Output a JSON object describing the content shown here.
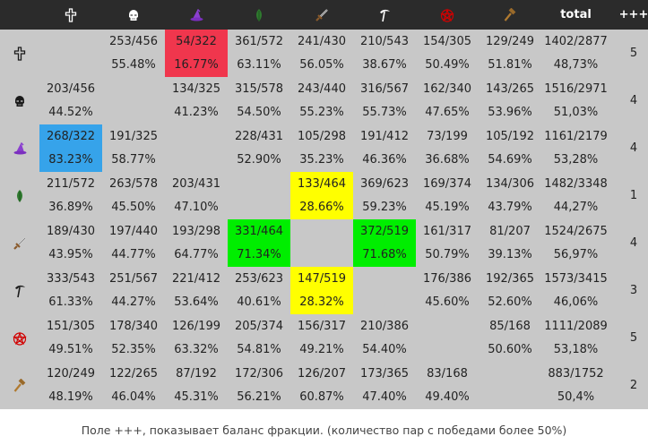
{
  "header": {
    "factions": [
      {
        "icon": "cross-icon"
      },
      {
        "icon": "skull-helmet-icon"
      },
      {
        "icon": "wizard-hat-icon"
      },
      {
        "icon": "leaf-icon"
      },
      {
        "icon": "sword-icon"
      },
      {
        "icon": "scythe-icon"
      },
      {
        "icon": "pentagram-icon"
      },
      {
        "icon": "hammer-icon"
      }
    ],
    "total_label": "total",
    "plus_label": "+++"
  },
  "rows": [
    {
      "icon": "cross-icon",
      "cells": [
        {
          "pair": "",
          "pct": ""
        },
        {
          "pair": "253/456",
          "pct": "55.48%"
        },
        {
          "pair": "54/322",
          "pct": "16.77%",
          "highlight": "red"
        },
        {
          "pair": "361/572",
          "pct": "63.11%"
        },
        {
          "pair": "241/430",
          "pct": "56.05%"
        },
        {
          "pair": "210/543",
          "pct": "38.67%"
        },
        {
          "pair": "154/305",
          "pct": "50.49%"
        },
        {
          "pair": "129/249",
          "pct": "51.81%"
        }
      ],
      "total": {
        "pair": "1402/2877",
        "pct": "48,73%"
      },
      "plus": "5"
    },
    {
      "icon": "skull-helmet-icon",
      "cells": [
        {
          "pair": "203/456",
          "pct": "44.52%"
        },
        {
          "pair": "",
          "pct": ""
        },
        {
          "pair": "134/325",
          "pct": "41.23%"
        },
        {
          "pair": "315/578",
          "pct": "54.50%"
        },
        {
          "pair": "243/440",
          "pct": "55.23%"
        },
        {
          "pair": "316/567",
          "pct": "55.73%"
        },
        {
          "pair": "162/340",
          "pct": "47.65%"
        },
        {
          "pair": "143/265",
          "pct": "53.96%"
        }
      ],
      "total": {
        "pair": "1516/2971",
        "pct": "51,03%"
      },
      "plus": "4"
    },
    {
      "icon": "wizard-hat-icon",
      "cells": [
        {
          "pair": "268/322",
          "pct": "83.23%",
          "highlight": "blue"
        },
        {
          "pair": "191/325",
          "pct": "58.77%"
        },
        {
          "pair": "",
          "pct": ""
        },
        {
          "pair": "228/431",
          "pct": "52.90%"
        },
        {
          "pair": "105/298",
          "pct": "35.23%"
        },
        {
          "pair": "191/412",
          "pct": "46.36%"
        },
        {
          "pair": "73/199",
          "pct": "36.68%"
        },
        {
          "pair": "105/192",
          "pct": "54.69%"
        }
      ],
      "total": {
        "pair": "1161/2179",
        "pct": "53,28%"
      },
      "plus": "4"
    },
    {
      "icon": "leaf-icon",
      "cells": [
        {
          "pair": "211/572",
          "pct": "36.89%"
        },
        {
          "pair": "263/578",
          "pct": "45.50%"
        },
        {
          "pair": "203/431",
          "pct": "47.10%"
        },
        {
          "pair": "",
          "pct": ""
        },
        {
          "pair": "133/464",
          "pct": "28.66%",
          "highlight": "yellow"
        },
        {
          "pair": "369/623",
          "pct": "59.23%"
        },
        {
          "pair": "169/374",
          "pct": "45.19%"
        },
        {
          "pair": "134/306",
          "pct": "43.79%"
        }
      ],
      "total": {
        "pair": "1482/3348",
        "pct": "44,27%"
      },
      "plus": "1"
    },
    {
      "icon": "sword-icon",
      "cells": [
        {
          "pair": "189/430",
          "pct": "43.95%"
        },
        {
          "pair": "197/440",
          "pct": "44.77%"
        },
        {
          "pair": "193/298",
          "pct": "64.77%"
        },
        {
          "pair": "331/464",
          "pct": "71.34%",
          "highlight": "green"
        },
        {
          "pair": "",
          "pct": ""
        },
        {
          "pair": "372/519",
          "pct": "71.68%",
          "highlight": "green"
        },
        {
          "pair": "161/317",
          "pct": "50.79%"
        },
        {
          "pair": "81/207",
          "pct": "39.13%"
        }
      ],
      "total": {
        "pair": "1524/2675",
        "pct": "56,97%"
      },
      "plus": "4"
    },
    {
      "icon": "scythe-icon",
      "cells": [
        {
          "pair": "333/543",
          "pct": "61.33%"
        },
        {
          "pair": "251/567",
          "pct": "44.27%"
        },
        {
          "pair": "221/412",
          "pct": "53.64%"
        },
        {
          "pair": "253/623",
          "pct": "40.61%"
        },
        {
          "pair": "147/519",
          "pct": "28.32%",
          "highlight": "yellow"
        },
        {
          "pair": "",
          "pct": ""
        },
        {
          "pair": "176/386",
          "pct": "45.60%"
        },
        {
          "pair": "192/365",
          "pct": "52.60%"
        }
      ],
      "total": {
        "pair": "1573/3415",
        "pct": "46,06%"
      },
      "plus": "3"
    },
    {
      "icon": "pentagram-icon",
      "cells": [
        {
          "pair": "151/305",
          "pct": "49.51%"
        },
        {
          "pair": "178/340",
          "pct": "52.35%"
        },
        {
          "pair": "126/199",
          "pct": "63.32%"
        },
        {
          "pair": "205/374",
          "pct": "54.81%"
        },
        {
          "pair": "156/317",
          "pct": "49.21%"
        },
        {
          "pair": "210/386",
          "pct": "54.40%"
        },
        {
          "pair": "",
          "pct": ""
        },
        {
          "pair": "85/168",
          "pct": "50.60%"
        }
      ],
      "total": {
        "pair": "1111/2089",
        "pct": "53,18%"
      },
      "plus": "5"
    },
    {
      "icon": "hammer-icon",
      "cells": [
        {
          "pair": "120/249",
          "pct": "48.19%"
        },
        {
          "pair": "122/265",
          "pct": "46.04%"
        },
        {
          "pair": "87/192",
          "pct": "45.31%"
        },
        {
          "pair": "172/306",
          "pct": "56.21%"
        },
        {
          "pair": "126/207",
          "pct": "60.87%"
        },
        {
          "pair": "173/365",
          "pct": "47.40%"
        },
        {
          "pair": "83/168",
          "pct": "49.40%"
        },
        {
          "pair": "",
          "pct": ""
        }
      ],
      "total": {
        "pair": "883/1752",
        "pct": "50,4%"
      },
      "plus": "2"
    }
  ],
  "caption": "Поле +++, показывает баланс фракции. (количество пар с победами более 50%)",
  "colors": {
    "header_bg": "#2b2b2b",
    "row_bg": "#c8c8c8",
    "red": "#f0364d",
    "blue": "#36a3ea",
    "yellow": "#ffff00",
    "green": "#00ee00"
  }
}
